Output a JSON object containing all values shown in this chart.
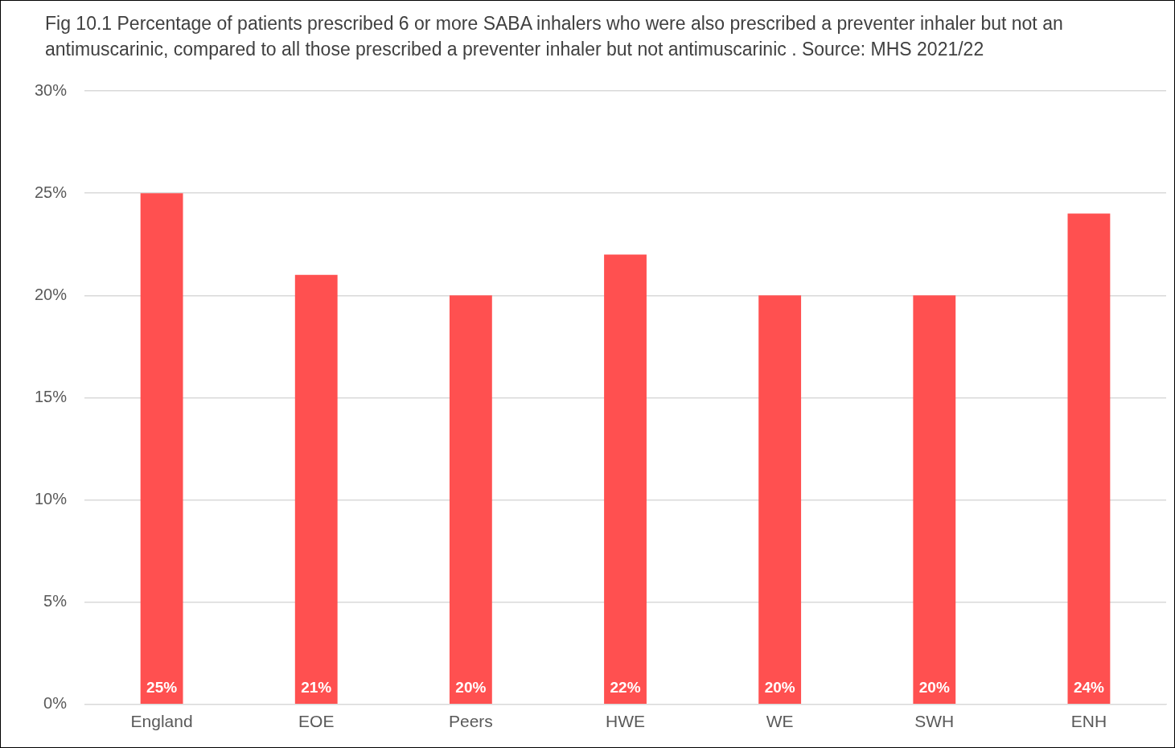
{
  "chart_data": {
    "type": "bar",
    "title": "Fig 10.1 Percentage of patients prescribed 6 or more SABA inhalers who were also prescribed a preventer inhaler but not an antimuscarinic, compared to all those prescribed a preventer inhaler but not antimuscarinic . Source: MHS 2021/22",
    "categories": [
      "England",
      "EOE",
      "Peers",
      "HWE",
      "WE",
      "SWH",
      "ENH"
    ],
    "values": [
      25,
      21,
      20,
      22,
      20,
      20,
      24
    ],
    "value_labels": [
      "25%",
      "21%",
      "20%",
      "22%",
      "20%",
      "20%",
      "24%"
    ],
    "color": "#ff5050",
    "ylim": [
      0,
      30
    ],
    "yticks": [
      {
        "value": 0,
        "label": "0%"
      },
      {
        "value": 5,
        "label": "5%"
      },
      {
        "value": 10,
        "label": "10%"
      },
      {
        "value": 15,
        "label": "15%"
      },
      {
        "value": 20,
        "label": "20%"
      },
      {
        "value": 25,
        "label": "25%"
      },
      {
        "value": 30,
        "label": "30%"
      }
    ],
    "grid": "y",
    "legend": false
  }
}
